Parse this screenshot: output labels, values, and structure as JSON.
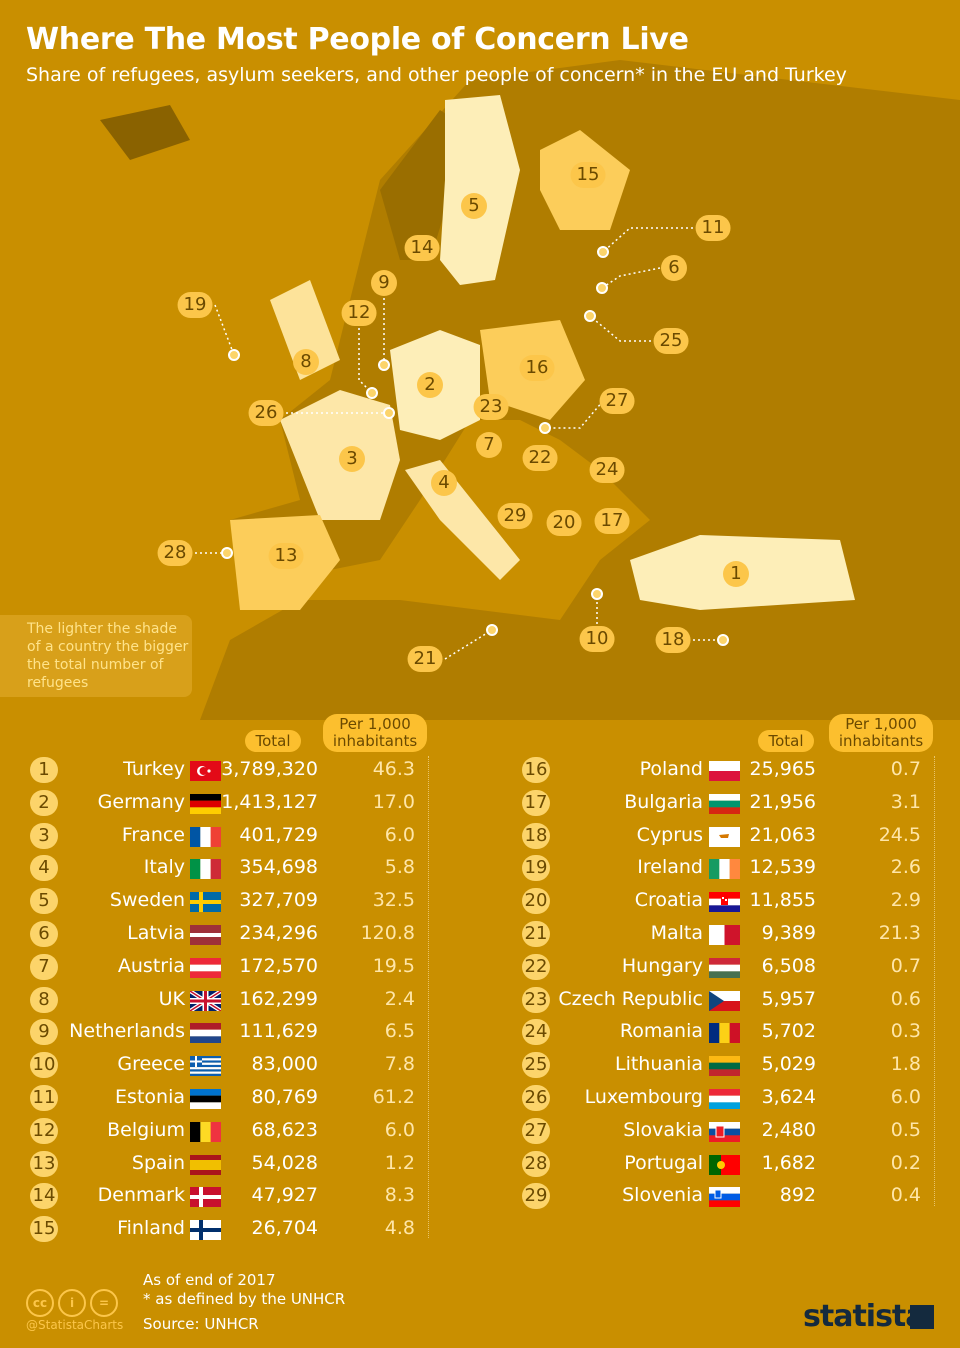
{
  "header": {
    "title": "Where The Most People of Concern Live",
    "subtitle": "Share of refugees, asylum seekers,  and other people of concern* in the EU and Turkey"
  },
  "legend_note": "The lighter the shade of a country the bigger the total number of refugees",
  "table_headers": {
    "total": "Total",
    "per_1000": "Per 1,000 inhabitants"
  },
  "colors": {
    "background": "#c98f00",
    "badge": "#fcd46a",
    "header_pill": "#fcbf2e",
    "light_country": "#fdeeb8"
  },
  "rows": [
    {
      "rank": "1",
      "country": "Turkey",
      "total": "3,789,320",
      "per_1000": "46.3",
      "flag": "turkey-flag"
    },
    {
      "rank": "2",
      "country": "Germany",
      "total": "1,413,127",
      "per_1000": "17.0",
      "flag": "germany-flag"
    },
    {
      "rank": "3",
      "country": "France",
      "total": "401,729",
      "per_1000": "6.0",
      "flag": "france-flag"
    },
    {
      "rank": "4",
      "country": "Italy",
      "total": "354,698",
      "per_1000": "5.8",
      "flag": "italy-flag"
    },
    {
      "rank": "5",
      "country": "Sweden",
      "total": "327,709",
      "per_1000": "32.5",
      "flag": "sweden-flag"
    },
    {
      "rank": "6",
      "country": "Latvia",
      "total": "234,296",
      "per_1000": "120.8",
      "flag": "latvia-flag"
    },
    {
      "rank": "7",
      "country": "Austria",
      "total": "172,570",
      "per_1000": "19.5",
      "flag": "austria-flag"
    },
    {
      "rank": "8",
      "country": "UK",
      "total": "162,299",
      "per_1000": "2.4",
      "flag": "uk-flag"
    },
    {
      "rank": "9",
      "country": "Netherlands",
      "total": "111,629",
      "per_1000": "6.5",
      "flag": "netherlands-flag"
    },
    {
      "rank": "10",
      "country": "Greece",
      "total": "83,000",
      "per_1000": "7.8",
      "flag": "greece-flag"
    },
    {
      "rank": "11",
      "country": "Estonia",
      "total": "80,769",
      "per_1000": "61.2",
      "flag": "estonia-flag"
    },
    {
      "rank": "12",
      "country": "Belgium",
      "total": "68,623",
      "per_1000": "6.0",
      "flag": "belgium-flag"
    },
    {
      "rank": "13",
      "country": "Spain",
      "total": "54,028",
      "per_1000": "1.2",
      "flag": "spain-flag"
    },
    {
      "rank": "14",
      "country": "Denmark",
      "total": "47,927",
      "per_1000": "8.3",
      "flag": "denmark-flag"
    },
    {
      "rank": "15",
      "country": "Finland",
      "total": "26,704",
      "per_1000": "4.8",
      "flag": "finland-flag"
    },
    {
      "rank": "16",
      "country": "Poland",
      "total": "25,965",
      "per_1000": "0.7",
      "flag": "poland-flag"
    },
    {
      "rank": "17",
      "country": "Bulgaria",
      "total": "21,956",
      "per_1000": "3.1",
      "flag": "bulgaria-flag"
    },
    {
      "rank": "18",
      "country": "Cyprus",
      "total": "21,063",
      "per_1000": "24.5",
      "flag": "cyprus-flag"
    },
    {
      "rank": "19",
      "country": "Ireland",
      "total": "12,539",
      "per_1000": "2.6",
      "flag": "ireland-flag"
    },
    {
      "rank": "20",
      "country": "Croatia",
      "total": "11,855",
      "per_1000": "2.9",
      "flag": "croatia-flag"
    },
    {
      "rank": "21",
      "country": "Malta",
      "total": "9,389",
      "per_1000": "21.3",
      "flag": "malta-flag"
    },
    {
      "rank": "22",
      "country": "Hungary",
      "total": "6,508",
      "per_1000": "0.7",
      "flag": "hungary-flag"
    },
    {
      "rank": "23",
      "country": "Czech Republic",
      "total": "5,957",
      "per_1000": "0.6",
      "flag": "czech-flag"
    },
    {
      "rank": "24",
      "country": "Romania",
      "total": "5,702",
      "per_1000": "0.3",
      "flag": "romania-flag"
    },
    {
      "rank": "25",
      "country": "Lithuania",
      "total": "5,029",
      "per_1000": "1.8",
      "flag": "lithuania-flag"
    },
    {
      "rank": "26",
      "country": "Luxembourg",
      "total": "3,624",
      "per_1000": "6.0",
      "flag": "luxembourg-flag"
    },
    {
      "rank": "27",
      "country": "Slovakia",
      "total": "2,480",
      "per_1000": "0.5",
      "flag": "slovakia-flag"
    },
    {
      "rank": "28",
      "country": "Portugal",
      "total": "1,682",
      "per_1000": "0.2",
      "flag": "portugal-flag"
    },
    {
      "rank": "29",
      "country": "Slovenia",
      "total": "892",
      "per_1000": "0.4",
      "flag": "slovenia-flag"
    }
  ],
  "footer": {
    "date": "As of end of 2017",
    "footnote": "* as defined by the UNHCR",
    "source": "Source: UNHCR",
    "handle": "@StatistaCharts",
    "brand": "statista",
    "license_icons": [
      "cc-icon",
      "by-icon",
      "nd-icon"
    ]
  }
}
